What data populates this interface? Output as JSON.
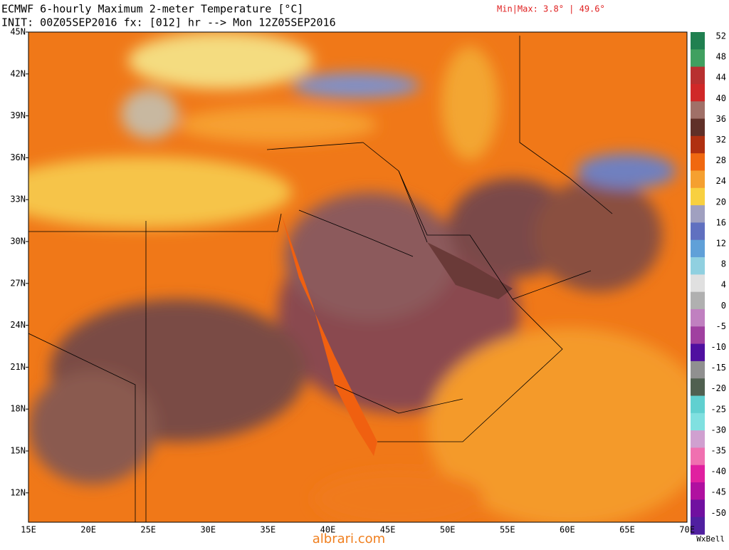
{
  "header": {
    "title": "ECMWF 6-hourly Maximum 2-meter Temperature [°C]",
    "init": "INIT: 00Z05SEP2016 fx: [012] hr --> Mon 12Z05SEP2016",
    "minmax": "Min|Max: 3.8° | 49.6°"
  },
  "map": {
    "lat_labels": [
      "45N",
      "42N",
      "39N",
      "36N",
      "33N",
      "30N",
      "27N",
      "24N",
      "21N",
      "18N",
      "15N",
      "12N"
    ],
    "lon_labels": [
      "15E",
      "20E",
      "25E",
      "30E",
      "35E",
      "40E",
      "45E",
      "50E",
      "55E",
      "60E",
      "65E",
      "70E"
    ]
  },
  "colorbar": {
    "labels": [
      "52",
      "48",
      "44",
      "40",
      "36",
      "32",
      "28",
      "24",
      "20",
      "16",
      "12",
      "8",
      "4",
      "0",
      "-5",
      "-10",
      "-15",
      "-20",
      "-25",
      "-30",
      "-35",
      "-40",
      "-45",
      "-50"
    ]
  },
  "footer": {
    "brand": "WxBell",
    "watermark": "albrari.com"
  }
}
